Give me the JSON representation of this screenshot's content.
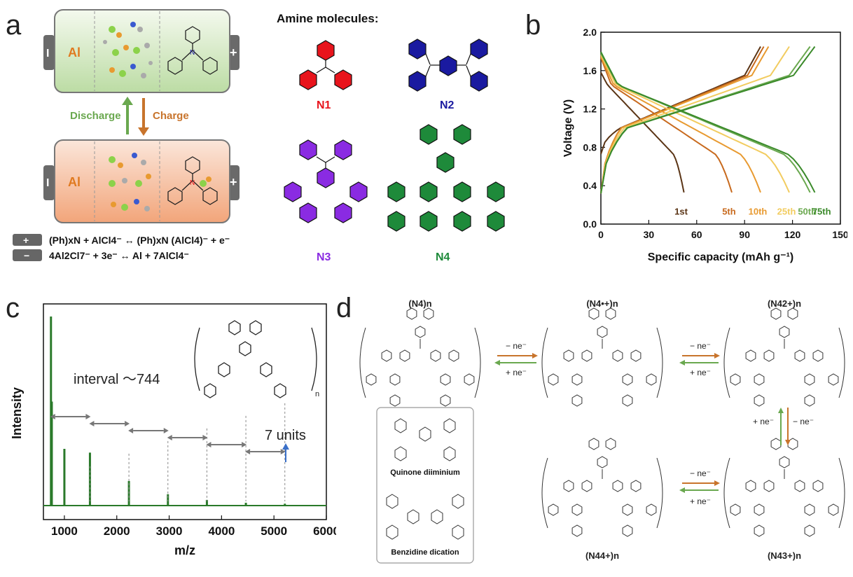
{
  "panels": {
    "a": "a",
    "b": "b",
    "c": "c",
    "d": "d"
  },
  "panel_a": {
    "anode": "Al",
    "discharge": "Discharge",
    "charge": "Charge",
    "terminal_neg": "I",
    "terminal_pos": "+",
    "amine_title": "Amine molecules:",
    "molecules": [
      "N1",
      "N2",
      "N3",
      "N4"
    ],
    "cathode_eq_sign": "+",
    "cathode_eq": "(Ph)xN + AlCl4⁻ ↔ (Ph)xN (AlCl4)⁻ + e⁻",
    "anode_eq_sign": "−",
    "anode_eq": "4Al2Cl7⁻ + 3e⁻ ↔ Al + 7AlCl4⁻"
  },
  "panel_d": {
    "labels": [
      "(N4)n",
      "(N4•+)n",
      "(N42+)n",
      "(N44+)n",
      "(N43+)n"
    ],
    "minus_ne": "− ne⁻",
    "plus_ne": "+ ne⁻",
    "inset_labels": [
      "Quinone diiminium",
      "Benzidine dication"
    ]
  },
  "colors": {
    "n1": "#e8141c",
    "n2": "#1a1aa0",
    "n3": "#8a2be2",
    "n4": "#1e8a3a",
    "discharge": "#6aa84f",
    "charge": "#c8742c"
  },
  "chart_data": [
    {
      "type": "line",
      "xlabel": "Specific capacity (mAh g⁻¹)",
      "ylabel": "Voltage (V)",
      "xlim": [
        0,
        150
      ],
      "ylim": [
        0.0,
        2.0
      ],
      "xticks": [
        0,
        30,
        60,
        90,
        120,
        150
      ],
      "yticks": [
        0.0,
        0.4,
        0.8,
        1.2,
        1.6,
        2.0
      ],
      "series": [
        {
          "name": "1st",
          "color": "#5a3415",
          "discharge_end": 52,
          "charge_end": 100
        },
        {
          "name": "5th",
          "color": "#c86a1e",
          "discharge_end": 82,
          "charge_end": 102
        },
        {
          "name": "10th",
          "color": "#e89a30",
          "discharge_end": 100,
          "charge_end": 105
        },
        {
          "name": "25th",
          "color": "#f2cc60",
          "discharge_end": 118,
          "charge_end": 118
        },
        {
          "name": "50th",
          "color": "#6aa84f",
          "discharge_end": 131,
          "charge_end": 131
        },
        {
          "name": "75th",
          "color": "#3a8a2a",
          "discharge_end": 134,
          "charge_end": 134
        }
      ]
    },
    {
      "type": "line",
      "xlabel": "m/z",
      "ylabel": "Intensity",
      "xlim": [
        600,
        6000
      ],
      "xticks": [
        1000,
        2000,
        3000,
        4000,
        5000,
        6000
      ],
      "interval_label": "interval ～744",
      "units_label": "7 units",
      "peaks": [
        {
          "x": 744,
          "y": 1.0
        },
        {
          "x": 760,
          "y": 0.55
        },
        {
          "x": 1000,
          "y": 0.3
        },
        {
          "x": 1488,
          "y": 0.28
        },
        {
          "x": 2232,
          "y": 0.13
        },
        {
          "x": 2976,
          "y": 0.06
        },
        {
          "x": 3720,
          "y": 0.03
        },
        {
          "x": 4464,
          "y": 0.015
        },
        {
          "x": 5208,
          "y": 0.01
        }
      ],
      "interval_markers": [
        744,
        1488,
        2232,
        2976,
        3720,
        4464,
        5208
      ]
    }
  ]
}
